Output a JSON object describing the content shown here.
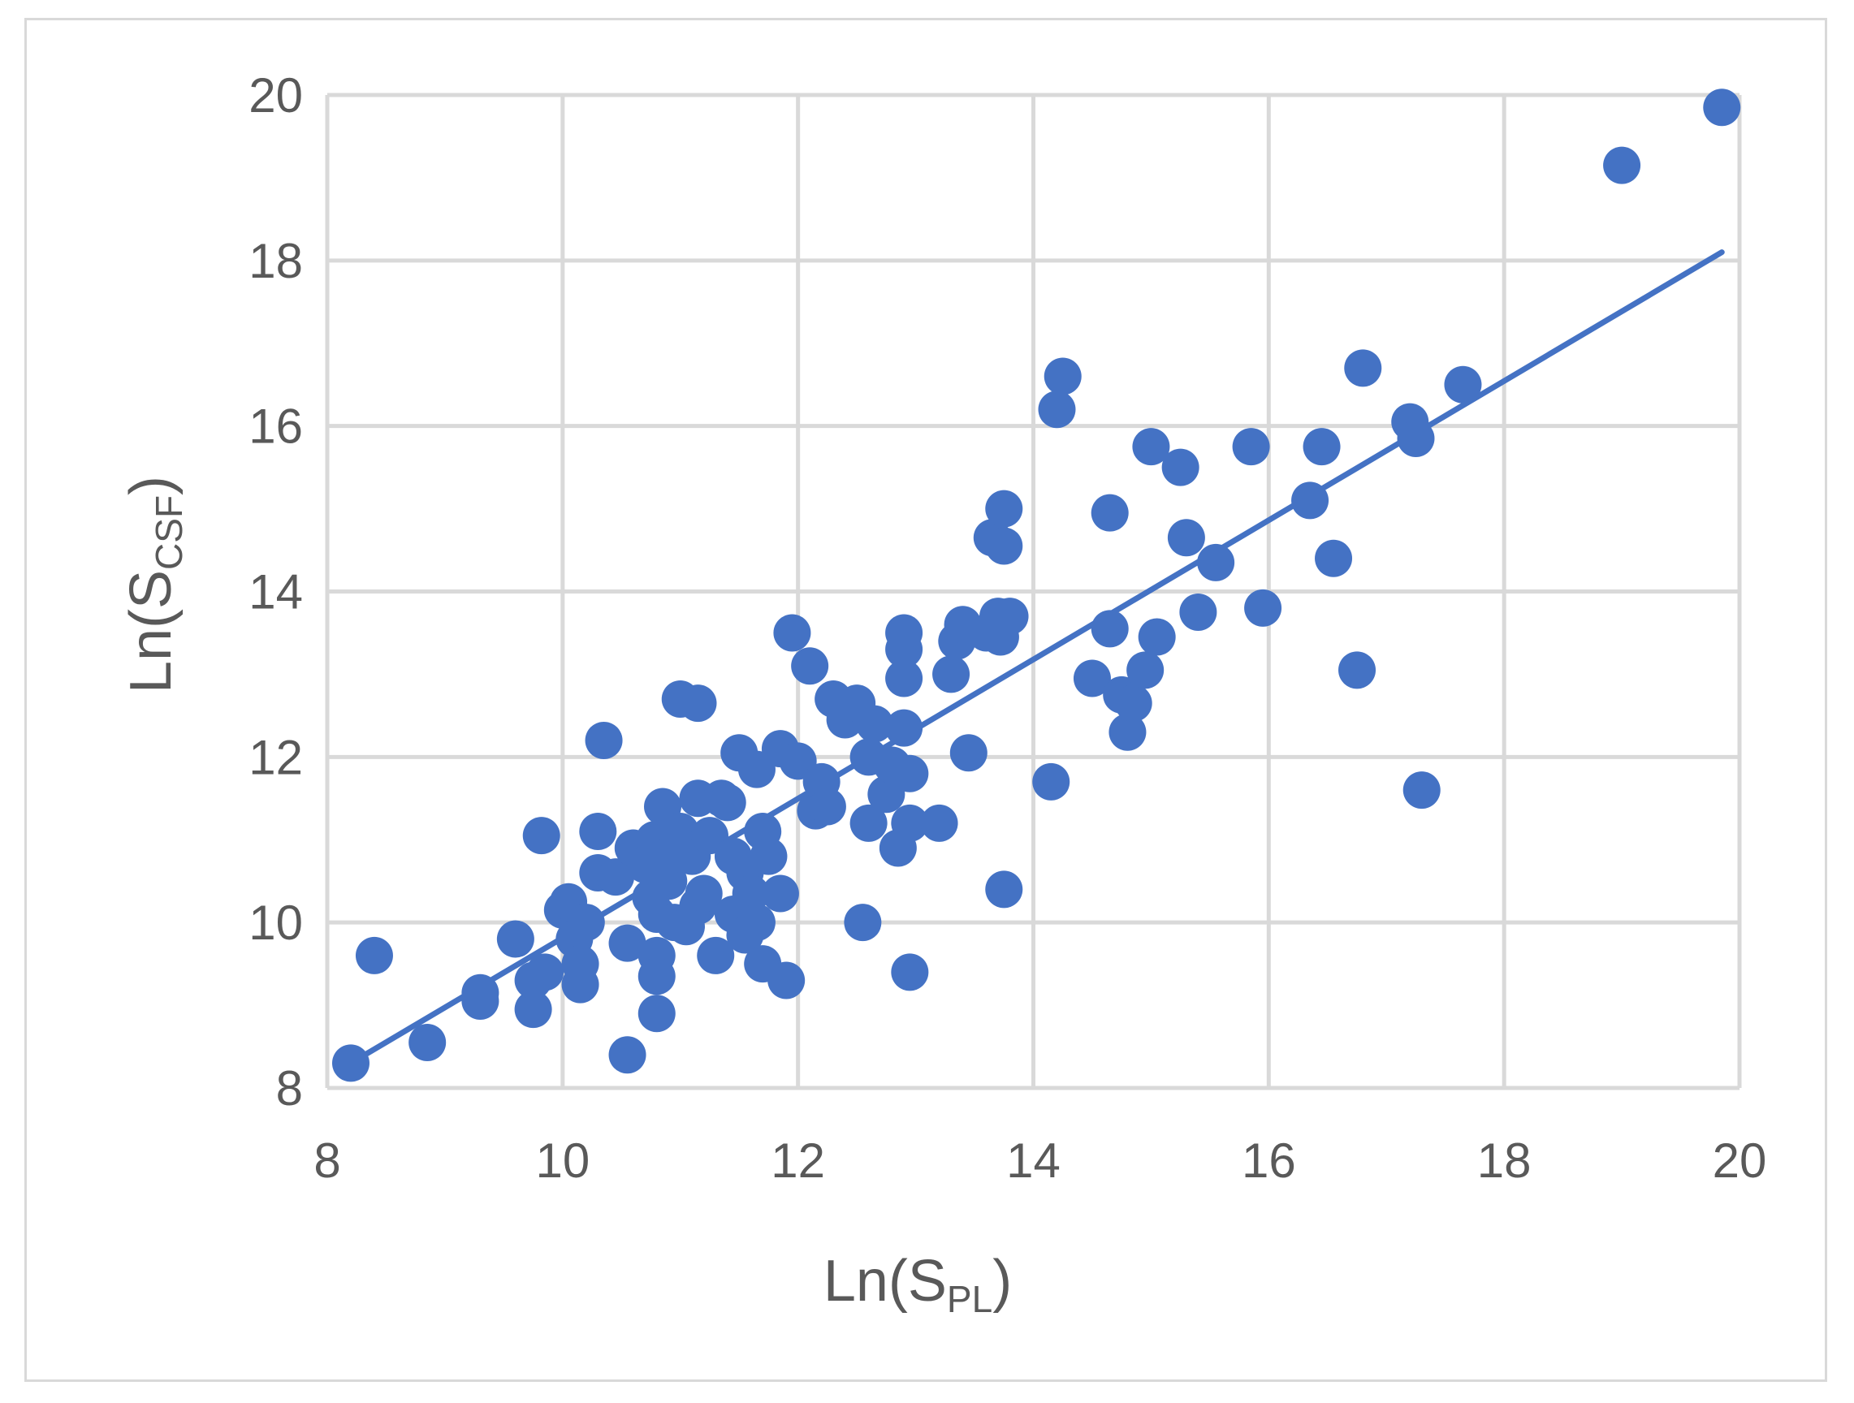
{
  "chart_data": {
    "type": "scatter",
    "title": "",
    "xlabel": {
      "main": "Ln(S",
      "sub": "PL",
      "close": ")"
    },
    "ylabel": {
      "main": "Ln(S",
      "sub": "CSF",
      "close": ")"
    },
    "xlim": [
      8,
      20
    ],
    "ylim": [
      8,
      20
    ],
    "xticks": [
      8,
      10,
      12,
      14,
      16,
      18,
      20
    ],
    "yticks": [
      8,
      10,
      12,
      14,
      16,
      18,
      20
    ],
    "grid": true,
    "colors": {
      "marker": "#4472c4",
      "trendline": "#4472c4",
      "grid": "#d9d9d9",
      "text": "#595959"
    },
    "trendline": {
      "x": [
        8.2,
        19.85
      ],
      "y": [
        8.3,
        18.1
      ]
    },
    "points": [
      [
        8.2,
        8.3
      ],
      [
        8.4,
        9.6
      ],
      [
        8.85,
        8.55
      ],
      [
        9.3,
        9.05
      ],
      [
        9.3,
        9.15
      ],
      [
        9.6,
        9.8
      ],
      [
        9.75,
        8.95
      ],
      [
        9.75,
        9.3
      ],
      [
        9.82,
        11.05
      ],
      [
        9.85,
        9.4
      ],
      [
        10.0,
        10.15
      ],
      [
        10.05,
        10.25
      ],
      [
        10.1,
        9.8
      ],
      [
        10.15,
        9.5
      ],
      [
        10.15,
        9.25
      ],
      [
        10.2,
        10.0
      ],
      [
        10.3,
        11.1
      ],
      [
        10.3,
        10.6
      ],
      [
        10.35,
        12.2
      ],
      [
        10.45,
        10.55
      ],
      [
        10.55,
        9.75
      ],
      [
        10.55,
        8.4
      ],
      [
        10.6,
        10.9
      ],
      [
        10.7,
        10.7
      ],
      [
        10.75,
        10.3
      ],
      [
        10.78,
        11.0
      ],
      [
        10.8,
        10.1
      ],
      [
        10.8,
        9.6
      ],
      [
        10.8,
        9.35
      ],
      [
        10.8,
        8.9
      ],
      [
        10.85,
        11.4
      ],
      [
        10.9,
        10.5
      ],
      [
        10.9,
        10.8
      ],
      [
        10.95,
        10.0
      ],
      [
        11.0,
        11.1
      ],
      [
        11.0,
        12.7
      ],
      [
        11.05,
        9.95
      ],
      [
        11.1,
        10.8
      ],
      [
        11.15,
        11.5
      ],
      [
        11.15,
        10.2
      ],
      [
        11.15,
        12.65
      ],
      [
        11.2,
        10.35
      ],
      [
        11.25,
        11.05
      ],
      [
        11.3,
        9.6
      ],
      [
        11.35,
        11.5
      ],
      [
        11.4,
        11.45
      ],
      [
        11.45,
        10.8
      ],
      [
        11.45,
        10.1
      ],
      [
        11.5,
        12.05
      ],
      [
        11.55,
        10.6
      ],
      [
        11.55,
        9.85
      ],
      [
        11.6,
        10.35
      ],
      [
        11.65,
        10.0
      ],
      [
        11.65,
        11.85
      ],
      [
        11.7,
        9.5
      ],
      [
        11.7,
        11.1
      ],
      [
        11.75,
        10.8
      ],
      [
        11.85,
        12.1
      ],
      [
        11.85,
        10.35
      ],
      [
        11.9,
        9.3
      ],
      [
        11.95,
        13.5
      ],
      [
        12.0,
        11.95
      ],
      [
        12.1,
        13.1
      ],
      [
        12.15,
        11.35
      ],
      [
        12.2,
        11.7
      ],
      [
        12.25,
        11.4
      ],
      [
        12.3,
        12.7
      ],
      [
        12.4,
        12.45
      ],
      [
        12.5,
        12.65
      ],
      [
        12.55,
        10.0
      ],
      [
        12.6,
        11.2
      ],
      [
        12.6,
        12.0
      ],
      [
        12.65,
        12.4
      ],
      [
        12.75,
        11.55
      ],
      [
        12.8,
        11.9
      ],
      [
        12.85,
        10.9
      ],
      [
        12.9,
        13.5
      ],
      [
        12.9,
        13.3
      ],
      [
        12.9,
        12.95
      ],
      [
        12.9,
        12.35
      ],
      [
        12.95,
        11.8
      ],
      [
        12.95,
        11.2
      ],
      [
        12.95,
        9.4
      ],
      [
        13.2,
        11.2
      ],
      [
        13.3,
        13.0
      ],
      [
        13.35,
        13.4
      ],
      [
        13.4,
        13.6
      ],
      [
        13.45,
        12.05
      ],
      [
        13.6,
        13.5
      ],
      [
        13.65,
        14.65
      ],
      [
        13.7,
        13.7
      ],
      [
        13.72,
        13.45
      ],
      [
        13.75,
        15.0
      ],
      [
        13.75,
        14.55
      ],
      [
        13.75,
        10.4
      ],
      [
        13.8,
        13.7
      ],
      [
        14.15,
        11.7
      ],
      [
        14.2,
        16.2
      ],
      [
        14.25,
        16.6
      ],
      [
        14.5,
        12.95
      ],
      [
        14.65,
        13.55
      ],
      [
        14.65,
        14.95
      ],
      [
        14.75,
        12.75
      ],
      [
        14.8,
        12.3
      ],
      [
        14.85,
        12.65
      ],
      [
        14.95,
        13.05
      ],
      [
        15.0,
        15.75
      ],
      [
        15.05,
        13.45
      ],
      [
        15.25,
        15.5
      ],
      [
        15.3,
        14.65
      ],
      [
        15.4,
        13.75
      ],
      [
        15.55,
        14.35
      ],
      [
        15.85,
        15.75
      ],
      [
        15.95,
        13.8
      ],
      [
        16.35,
        15.1
      ],
      [
        16.45,
        15.75
      ],
      [
        16.55,
        14.4
      ],
      [
        16.75,
        13.05
      ],
      [
        16.8,
        16.7
      ],
      [
        17.2,
        16.05
      ],
      [
        17.25,
        15.85
      ],
      [
        17.3,
        11.6
      ],
      [
        17.65,
        16.5
      ],
      [
        19.0,
        19.15
      ],
      [
        19.85,
        19.85
      ]
    ]
  }
}
